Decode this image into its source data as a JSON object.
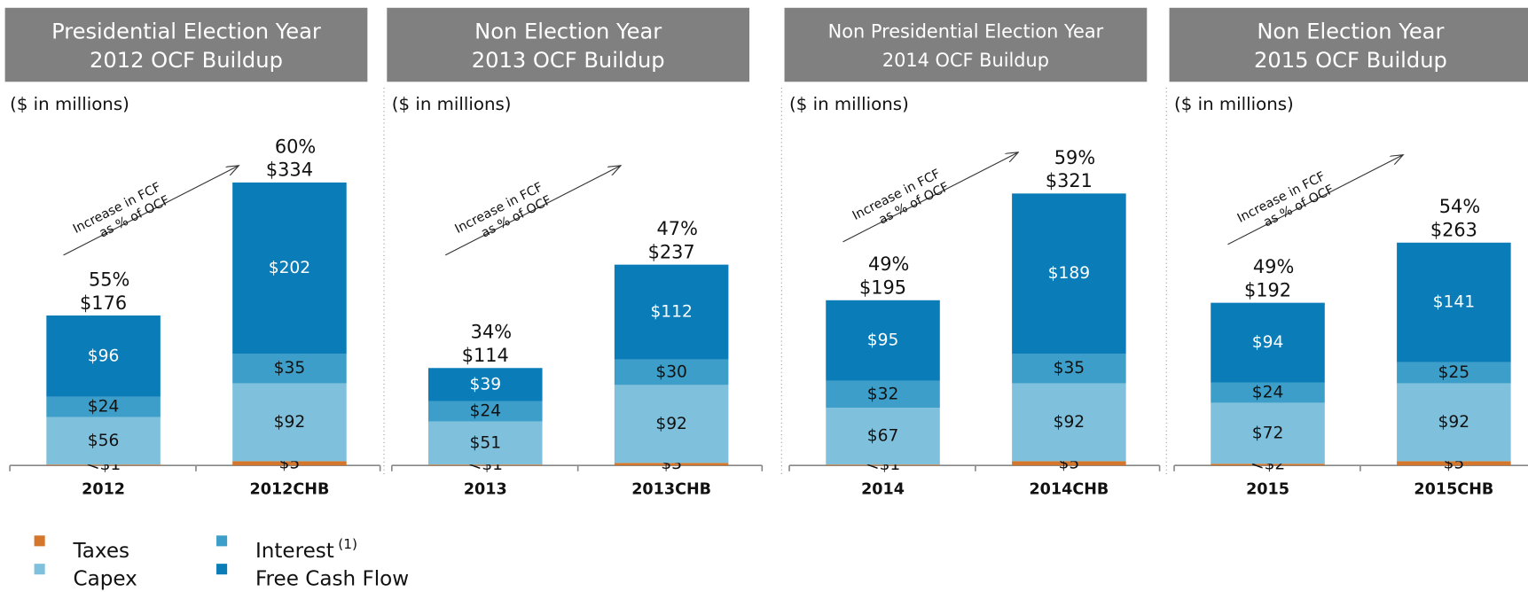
{
  "chart_data": [
    {
      "type": "bar",
      "title": [
        "Presidential Election Year",
        "2012 OCF Buildup"
      ],
      "subtitle": "($ in millions)",
      "annotation": [
        "Increase in FCF",
        "as % of OCF"
      ],
      "categories": [
        "2012",
        "2012CHB"
      ],
      "series": [
        {
          "name": "Taxes",
          "color": "#d4772c",
          "values": [
            1,
            5
          ],
          "value_labels": [
            "<$1",
            "$5"
          ]
        },
        {
          "name": "Capex",
          "color": "#7fc1dc",
          "values": [
            56,
            92
          ],
          "value_labels": [
            "$56",
            "$92"
          ]
        },
        {
          "name": "Interest",
          "footnote": "(1)",
          "color": "#3d9fc9",
          "values": [
            24,
            35
          ],
          "value_labels": [
            "$24",
            "$35"
          ]
        },
        {
          "name": "Free Cash Flow",
          "color": "#0a7cb8",
          "values": [
            96,
            202
          ],
          "value_labels": [
            "$96",
            "$202"
          ]
        }
      ],
      "totals": [
        176,
        334
      ],
      "total_labels": [
        "$176",
        "$334"
      ],
      "fcf_pct": [
        55,
        60
      ],
      "fcf_pct_labels": [
        "55%",
        "60%"
      ]
    },
    {
      "type": "bar",
      "title": [
        "Non Election Year",
        "2013 OCF Buildup"
      ],
      "subtitle": "($ in millions)",
      "annotation": [
        "Increase in FCF",
        "as % of OCF"
      ],
      "categories": [
        "2013",
        "2013CHB"
      ],
      "series": [
        {
          "name": "Taxes",
          "color": "#d4772c",
          "values": [
            1,
            3
          ],
          "value_labels": [
            "<$1",
            "$3"
          ]
        },
        {
          "name": "Capex",
          "color": "#7fc1dc",
          "values": [
            51,
            92
          ],
          "value_labels": [
            "$51",
            "$92"
          ]
        },
        {
          "name": "Interest",
          "color": "#3d9fc9",
          "values": [
            24,
            30
          ],
          "value_labels": [
            "$24",
            "$30"
          ]
        },
        {
          "name": "Free Cash Flow",
          "color": "#0a7cb8",
          "values": [
            39,
            112
          ],
          "value_labels": [
            "$39",
            "$112"
          ]
        }
      ],
      "totals": [
        114,
        237
      ],
      "total_labels": [
        "$114",
        "$237"
      ],
      "fcf_pct": [
        34,
        47
      ],
      "fcf_pct_labels": [
        "34%",
        "47%"
      ]
    },
    {
      "type": "bar",
      "title": [
        "Non Presidential Election Year",
        "2014 OCF Buildup"
      ],
      "subtitle": "($ in millions)",
      "annotation": [
        "Increase in FCF",
        "as % of OCF"
      ],
      "categories": [
        "2014",
        "2014CHB"
      ],
      "series": [
        {
          "name": "Taxes",
          "color": "#d4772c",
          "values": [
            1,
            5
          ],
          "value_labels": [
            "<$1",
            "$5"
          ]
        },
        {
          "name": "Capex",
          "color": "#7fc1dc",
          "values": [
            67,
            92
          ],
          "value_labels": [
            "$67",
            "$92"
          ]
        },
        {
          "name": "Interest",
          "color": "#3d9fc9",
          "values": [
            32,
            35
          ],
          "value_labels": [
            "$32",
            "$35"
          ]
        },
        {
          "name": "Free Cash Flow",
          "color": "#0a7cb8",
          "values": [
            95,
            189
          ],
          "value_labels": [
            "$95",
            "$189"
          ]
        }
      ],
      "totals": [
        195,
        321
      ],
      "total_labels": [
        "$195",
        "$321"
      ],
      "fcf_pct": [
        49,
        59
      ],
      "fcf_pct_labels": [
        "49%",
        "59%"
      ]
    },
    {
      "type": "bar",
      "title": [
        "Non Election Year",
        "2015 OCF Buildup"
      ],
      "subtitle": "($ in millions)",
      "annotation": [
        "Increase in FCF",
        "as % of OCF"
      ],
      "categories": [
        "2015",
        "2015CHB"
      ],
      "series": [
        {
          "name": "Taxes",
          "color": "#d4772c",
          "values": [
            2,
            5
          ],
          "value_labels": [
            "<$2",
            "$5"
          ]
        },
        {
          "name": "Capex",
          "color": "#7fc1dc",
          "values": [
            72,
            92
          ],
          "value_labels": [
            "$72",
            "$92"
          ]
        },
        {
          "name": "Interest",
          "color": "#3d9fc9",
          "values": [
            24,
            25
          ],
          "value_labels": [
            "$24",
            "$25"
          ]
        },
        {
          "name": "Free Cash Flow",
          "color": "#0a7cb8",
          "values": [
            94,
            141
          ],
          "value_labels": [
            "$94",
            "$141"
          ]
        }
      ],
      "totals": [
        192,
        263
      ],
      "total_labels": [
        "$192",
        "$263"
      ],
      "fcf_pct": [
        49,
        54
      ],
      "fcf_pct_labels": [
        "49%",
        "54%"
      ]
    }
  ]
}
